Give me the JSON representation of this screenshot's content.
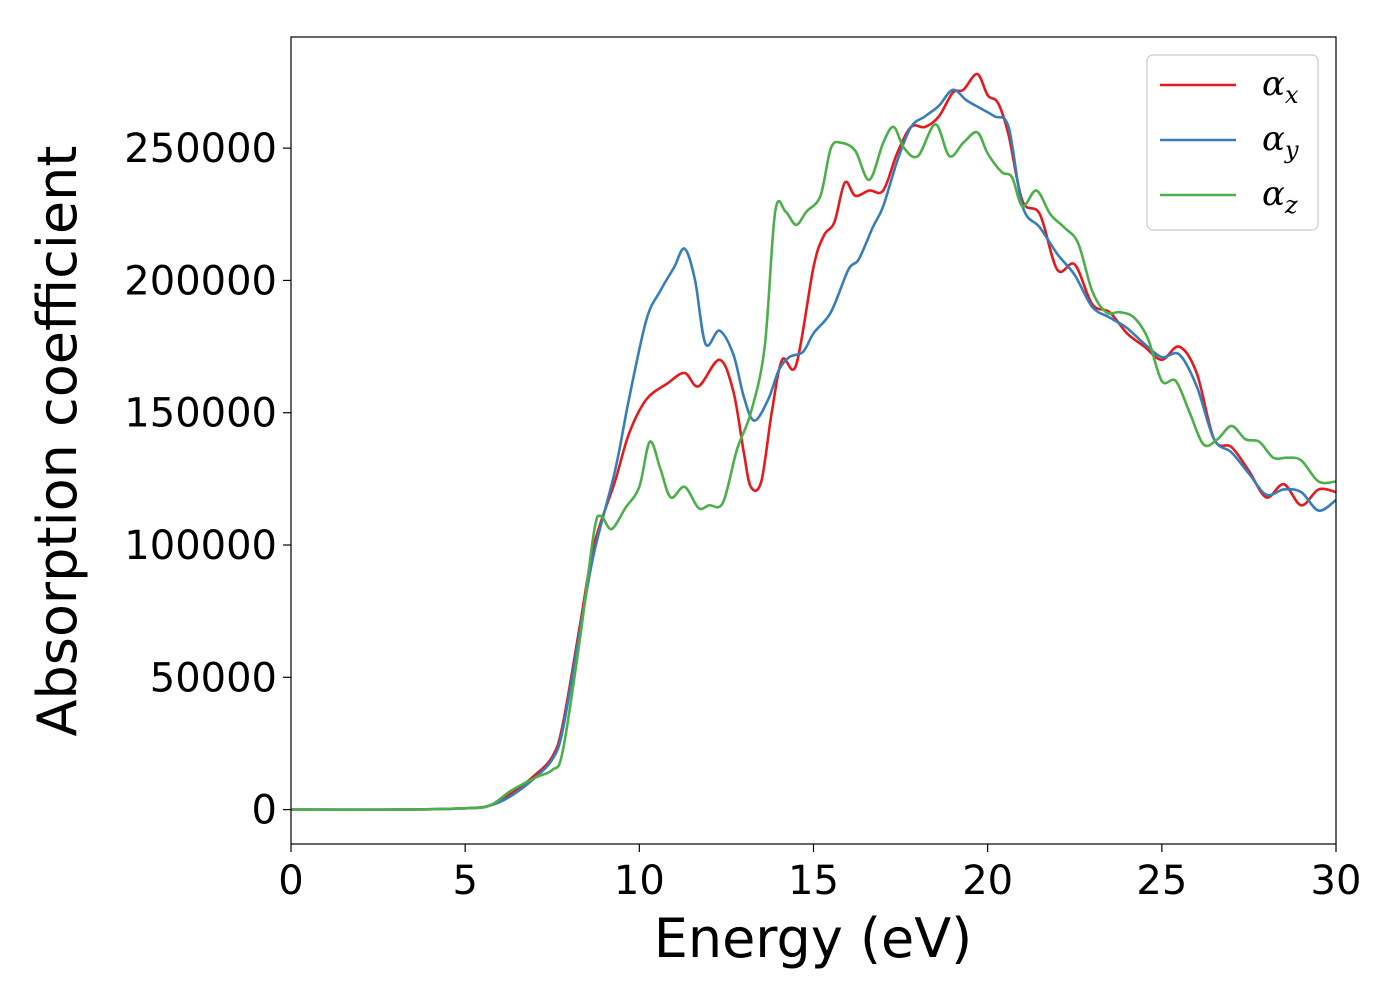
{
  "chart_data": {
    "type": "line",
    "xlabel": "Energy (eV)",
    "ylabel": "Absorption coefficient",
    "xlim": [
      0,
      30
    ],
    "ylim": [
      -13000,
      292000
    ],
    "xticks": [
      "0",
      "5",
      "10",
      "15",
      "20",
      "25",
      "30"
    ],
    "yticks": [
      "0",
      "50000",
      "100000",
      "150000",
      "200000",
      "250000"
    ],
    "grid": false,
    "legend_position": "top-right",
    "colors": {
      "alpha_x": "#e41a1c",
      "alpha_y": "#377eb8",
      "alpha_z": "#4daf4a"
    },
    "series": [
      {
        "name": "α_x",
        "base": "α",
        "sub": "x",
        "color": "#e41a1c",
        "x": [
          0,
          3,
          5,
          5.7,
          6.3,
          7,
          7.5,
          7.8,
          8.3,
          8.7,
          9.3,
          9.7,
          10.2,
          10.8,
          11.3,
          11.7,
          12.3,
          12.7,
          13.0,
          13.2,
          13.5,
          13.8,
          14.1,
          14.5,
          15,
          15.3,
          15.6,
          15.9,
          16.2,
          16.6,
          17.0,
          17.4,
          17.8,
          18.2,
          18.6,
          19.0,
          19.3,
          19.7,
          20.0,
          20.3,
          20.6,
          21.0,
          21.5,
          22.0,
          22.5,
          23.0,
          23.5,
          24.0,
          24.5,
          25.0,
          25.5,
          26.0,
          26.5,
          27.0,
          27.5,
          28.0,
          28.5,
          29.0,
          29.5,
          30.0
        ],
        "y": [
          0,
          0,
          500,
          1500,
          6000,
          13000,
          20000,
          32000,
          70000,
          100000,
          124000,
          142000,
          155000,
          161000,
          165000,
          160000,
          170000,
          158000,
          135000,
          122000,
          124000,
          150000,
          170000,
          168000,
          205000,
          217000,
          222000,
          237000,
          232000,
          234000,
          234000,
          248000,
          258000,
          258000,
          262000,
          271000,
          272000,
          278000,
          270000,
          267000,
          255000,
          230000,
          225000,
          204000,
          206000,
          191000,
          188000,
          180000,
          175000,
          170000,
          175000,
          165000,
          140000,
          137000,
          128000,
          118000,
          123000,
          115000,
          121000,
          120000
        ]
      },
      {
        "name": "α_y",
        "base": "α",
        "sub": "y",
        "color": "#377eb8",
        "x": [
          0,
          3,
          5,
          5.7,
          6.3,
          7,
          7.5,
          7.8,
          8.3,
          8.7,
          9.3,
          9.7,
          10.2,
          10.6,
          11.0,
          11.3,
          11.6,
          11.9,
          12.3,
          12.7,
          13.0,
          13.3,
          13.7,
          14.0,
          14.3,
          14.7,
          15.0,
          15.5,
          16.0,
          16.3,
          16.7,
          17.0,
          17.4,
          17.8,
          18.2,
          18.6,
          19.0,
          19.4,
          19.8,
          20.2,
          20.6,
          21.0,
          21.5,
          22.0,
          22.5,
          23.0,
          23.5,
          24.0,
          24.5,
          25.0,
          25.5,
          26.0,
          26.5,
          27.0,
          27.5,
          28.0,
          28.5,
          29.0,
          29.5,
          30.0
        ],
        "y": [
          0,
          0,
          500,
          1500,
          5000,
          12000,
          19000,
          30000,
          68000,
          97000,
          128000,
          155000,
          185000,
          196000,
          205000,
          212000,
          200000,
          176000,
          181000,
          172000,
          156000,
          147000,
          155000,
          166000,
          171000,
          173000,
          180000,
          188000,
          204000,
          208000,
          220000,
          228000,
          245000,
          258000,
          262000,
          266000,
          272000,
          268000,
          265000,
          262000,
          258000,
          228000,
          220000,
          210000,
          202000,
          190000,
          186000,
          182000,
          176000,
          171000,
          172000,
          160000,
          140000,
          135000,
          127000,
          119000,
          121000,
          120000,
          113000,
          117000
        ]
      },
      {
        "name": "α_z",
        "base": "α",
        "sub": "z",
        "color": "#4daf4a",
        "x": [
          0,
          3,
          5,
          5.7,
          6.3,
          7,
          7.5,
          7.8,
          8.3,
          8.7,
          8.9,
          9.2,
          9.6,
          10.0,
          10.3,
          10.6,
          10.9,
          11.3,
          11.7,
          12.0,
          12.4,
          12.8,
          13.2,
          13.6,
          13.9,
          14.2,
          14.5,
          14.8,
          15.2,
          15.5,
          15.8,
          16.2,
          16.6,
          17.0,
          17.3,
          17.6,
          18.0,
          18.5,
          18.9,
          19.3,
          19.7,
          20.0,
          20.4,
          20.7,
          21.0,
          21.4,
          21.8,
          22.2,
          22.6,
          23.0,
          23.4,
          23.8,
          24.2,
          24.6,
          25.0,
          25.4,
          25.8,
          26.2,
          26.6,
          27.0,
          27.4,
          27.8,
          28.2,
          28.6,
          29.0,
          29.5,
          30.0
        ],
        "y": [
          0,
          0,
          500,
          1500,
          7000,
          12000,
          15000,
          22000,
          65000,
          105000,
          111000,
          106000,
          114000,
          122000,
          139000,
          129000,
          118000,
          122000,
          114000,
          115000,
          116000,
          136000,
          150000,
          175000,
          226000,
          226000,
          221000,
          226000,
          232000,
          250000,
          252000,
          249000,
          238000,
          252000,
          258000,
          250000,
          247000,
          259000,
          247000,
          252000,
          256000,
          248000,
          241000,
          239000,
          228000,
          234000,
          225000,
          220000,
          214000,
          196000,
          188000,
          188000,
          186000,
          178000,
          162000,
          162000,
          150000,
          138000,
          140000,
          145000,
          140000,
          139000,
          133000,
          133000,
          132000,
          124000,
          124000
        ]
      }
    ]
  }
}
